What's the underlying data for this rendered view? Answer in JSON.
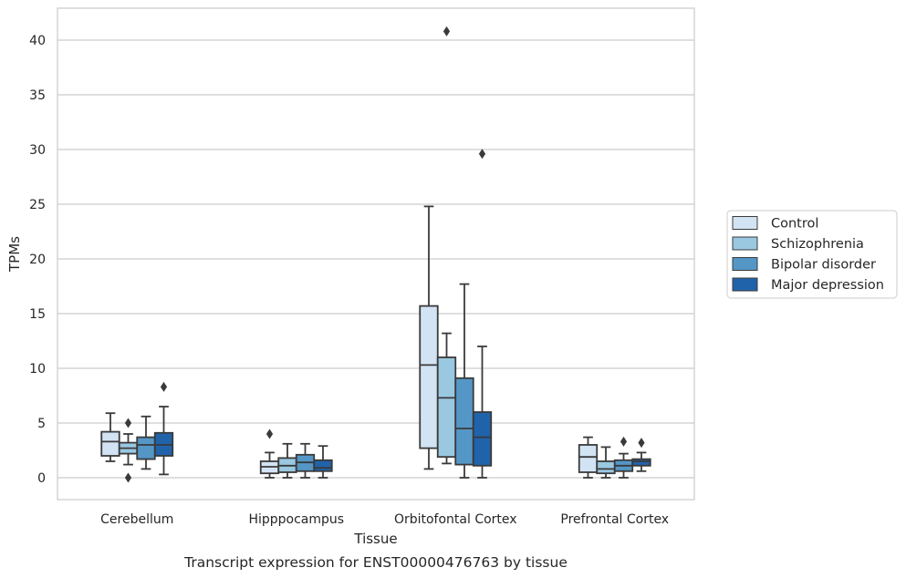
{
  "chart_data": {
    "type": "box",
    "caption": "Transcript expression for ENST00000476763 by tissue",
    "xlabel": "Tissue",
    "ylabel": "TPMs",
    "categories": [
      "Cerebellum",
      "Hipppocampus",
      "Orbitofontal Cortex",
      "Prefrontal Cortex"
    ],
    "ylim": [
      -2,
      42.8
    ],
    "yticks": [
      0,
      5,
      10,
      15,
      20,
      25,
      30,
      35,
      40
    ],
    "grid": "horizontal",
    "legend_position": "right",
    "series": [
      {
        "name": "Control",
        "color": "#d2e3f3",
        "boxes": [
          {
            "whisker_low": 1.5,
            "q1": 2.0,
            "median": 3.3,
            "q3": 4.2,
            "whisker_high": 5.9,
            "outliers": []
          },
          {
            "whisker_low": 0.0,
            "q1": 0.4,
            "median": 1.0,
            "q3": 1.5,
            "whisker_high": 2.3,
            "outliers": [
              4.0
            ]
          },
          {
            "whisker_low": 0.8,
            "q1": 2.7,
            "median": 10.3,
            "q3": 15.7,
            "whisker_high": 24.8,
            "outliers": []
          },
          {
            "whisker_low": 0.0,
            "q1": 0.5,
            "median": 1.9,
            "q3": 3.0,
            "whisker_high": 3.7,
            "outliers": []
          }
        ]
      },
      {
        "name": "Schizophrenia",
        "color": "#9ac8e1",
        "boxes": [
          {
            "whisker_low": 1.2,
            "q1": 2.2,
            "median": 2.7,
            "q3": 3.2,
            "whisker_high": 4.0,
            "outliers": [
              5.0,
              0.0
            ]
          },
          {
            "whisker_low": 0.0,
            "q1": 0.5,
            "median": 1.1,
            "q3": 1.8,
            "whisker_high": 3.1,
            "outliers": []
          },
          {
            "whisker_low": 1.3,
            "q1": 1.9,
            "median": 7.3,
            "q3": 11.0,
            "whisker_high": 13.2,
            "outliers": [
              40.8
            ]
          },
          {
            "whisker_low": 0.0,
            "q1": 0.4,
            "median": 0.8,
            "q3": 1.5,
            "whisker_high": 2.8,
            "outliers": []
          }
        ]
      },
      {
        "name": "Bipolar disorder",
        "color": "#5497c7",
        "boxes": [
          {
            "whisker_low": 0.8,
            "q1": 1.7,
            "median": 3.0,
            "q3": 3.7,
            "whisker_high": 5.6,
            "outliers": []
          },
          {
            "whisker_low": 0.0,
            "q1": 0.6,
            "median": 1.4,
            "q3": 2.1,
            "whisker_high": 3.1,
            "outliers": []
          },
          {
            "whisker_low": 0.0,
            "q1": 1.2,
            "median": 4.5,
            "q3": 9.1,
            "whisker_high": 17.7,
            "outliers": []
          },
          {
            "whisker_low": 0.0,
            "q1": 0.6,
            "median": 1.1,
            "q3": 1.6,
            "whisker_high": 2.2,
            "outliers": [
              3.3
            ]
          }
        ]
      },
      {
        "name": "Major depression",
        "color": "#2163aa",
        "boxes": [
          {
            "whisker_low": 0.3,
            "q1": 2.0,
            "median": 3.0,
            "q3": 4.1,
            "whisker_high": 6.5,
            "outliers": [
              8.3
            ]
          },
          {
            "whisker_low": 0.0,
            "q1": 0.6,
            "median": 0.9,
            "q3": 1.6,
            "whisker_high": 2.9,
            "outliers": []
          },
          {
            "whisker_low": 0.0,
            "q1": 1.1,
            "median": 3.7,
            "q3": 6.0,
            "whisker_high": 12.0,
            "outliers": [
              29.6
            ]
          },
          {
            "whisker_low": 0.6,
            "q1": 1.1,
            "median": 1.5,
            "q3": 1.7,
            "whisker_high": 2.3,
            "outliers": [
              3.2
            ]
          }
        ]
      }
    ]
  }
}
